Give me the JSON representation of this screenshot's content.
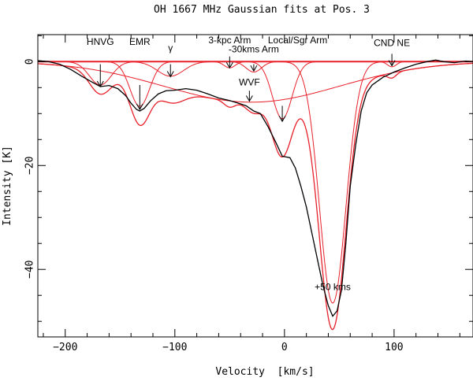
{
  "chart_data": {
    "type": "line",
    "title": "OH 1667 MHz Gaussian fits at Pos. 3",
    "xlabel": "Velocity  [km/s]",
    "ylabel": "Intensity [K]",
    "xlim": [
      -225,
      172
    ],
    "ylim": [
      -53,
      5.2
    ],
    "xticks": [
      -200,
      -100,
      0,
      100
    ],
    "xtick_labels": [
      "−200",
      "−100",
      "0",
      "100"
    ],
    "yticks": [
      0,
      -20,
      -40
    ],
    "ytick_labels": [
      "0",
      "−20",
      "−40"
    ],
    "colors": {
      "observed": "#000000",
      "fit": "#e8202a",
      "axes": "#000000"
    },
    "gaussians": [
      {
        "center": -168,
        "amp": -4.5,
        "sigma": 10
      },
      {
        "center": -132,
        "amp": -8.6,
        "sigma": 9
      },
      {
        "center": -104,
        "amp": -2.8,
        "sigma": 12
      },
      {
        "center": -50,
        "amp": -1.2,
        "sigma": 5
      },
      {
        "center": -30,
        "amp": -7.8,
        "sigma": 80
      },
      {
        "center": -28,
        "amp": -2.0,
        "sigma": 7
      },
      {
        "center": -2,
        "amp": -11.0,
        "sigma": 9
      },
      {
        "center": 44,
        "amp": -46.5,
        "sigma": 12
      },
      {
        "center": 98,
        "amp": -1.0,
        "sigma": 4
      }
    ],
    "series": [
      {
        "name": "observed spectrum",
        "x": [
          -225,
          -215,
          -205,
          -195,
          -185,
          -175,
          -168,
          -160,
          -152,
          -145,
          -140,
          -135,
          -132,
          -128,
          -122,
          -115,
          -108,
          -100,
          -90,
          -80,
          -70,
          -60,
          -50,
          -42,
          -35,
          -28,
          -22,
          -15,
          -8,
          -2,
          5,
          10,
          15,
          20,
          25,
          30,
          35,
          40,
          44,
          48,
          52,
          56,
          60,
          65,
          70,
          75,
          80,
          90,
          100,
          110,
          120,
          130,
          138,
          145,
          155,
          165,
          172
        ],
        "y": [
          0.2,
          0.0,
          -0.5,
          -1.5,
          -2.8,
          -4.0,
          -4.8,
          -4.6,
          -5.2,
          -6.5,
          -8.0,
          -9.2,
          -9.5,
          -9.0,
          -7.5,
          -6.2,
          -5.6,
          -5.5,
          -5.2,
          -5.5,
          -6.2,
          -7.0,
          -7.5,
          -8.0,
          -8.5,
          -9.5,
          -10.0,
          -12.5,
          -15.5,
          -18.2,
          -18.5,
          -20.5,
          -24.0,
          -28.0,
          -33.0,
          -38.0,
          -43.0,
          -47.0,
          -49.0,
          -48.0,
          -44.0,
          -35.0,
          -24.0,
          -16.0,
          -9.5,
          -6.0,
          -4.5,
          -3.0,
          -2.0,
          -1.2,
          -0.5,
          0.0,
          0.3,
          0.0,
          -0.2,
          0.1,
          0.0
        ]
      }
    ],
    "annotations": [
      {
        "text": "HNVG",
        "x": -168,
        "y": 3.2,
        "arrow_from": -0.5,
        "arrow_to": -4.8
      },
      {
        "text": "EMR",
        "x": -132,
        "y": 3.2,
        "arrow_from": -4.5,
        "arrow_to": -9.2
      },
      {
        "text": "γ",
        "x": -104,
        "y": 2.0,
        "arrow_from": -0.5,
        "arrow_to": -2.9
      },
      {
        "text": "3-kpc Arm",
        "x": -50,
        "y": 3.5,
        "arrow_from": 1.0,
        "arrow_to": -1.2
      },
      {
        "text": "-30kms Arm",
        "x": -28,
        "y": 1.8,
        "arrow_from": -0.5,
        "arrow_to": -1.8
      },
      {
        "text": "Local/Sgr Arm",
        "x": 12,
        "y": 3.5,
        "arrow_from": null,
        "arrow_to": null
      },
      {
        "text": "WVF",
        "x": -32,
        "y": -4.6,
        "arrow_from": -5.6,
        "arrow_to": -7.6
      },
      {
        "text": "",
        "x": -2,
        "y": -8.5,
        "arrow_from": -8.5,
        "arrow_to": -11.5
      },
      {
        "text": "CND NE",
        "x": 98,
        "y": 3.0,
        "arrow_from": 1.5,
        "arrow_to": -0.8
      },
      {
        "text": "+50 kms",
        "x": 44,
        "y": -44.0,
        "arrow_from": null,
        "arrow_to": null
      }
    ]
  }
}
